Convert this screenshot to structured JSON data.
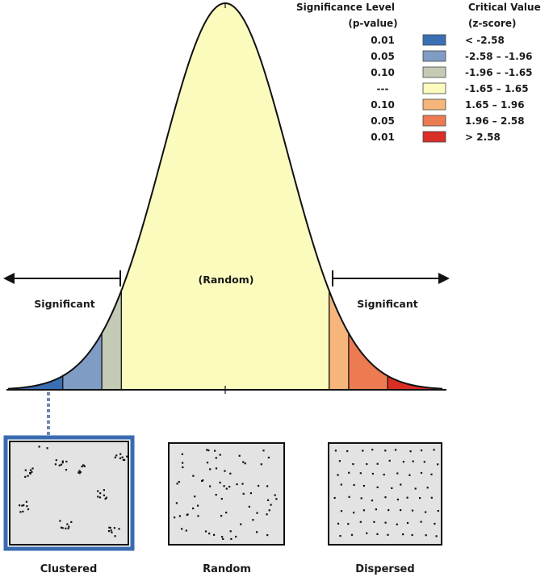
{
  "legend": {
    "p_header_line1": "Significance Level",
    "p_header_line2": "(p-value)",
    "z_header_line1": "Critical Value",
    "z_header_line2": "(z-score)",
    "rows": [
      {
        "p": "0.01",
        "z": "< -2.58",
        "color": "#3b6fb4"
      },
      {
        "p": "0.05",
        "z": "-2.58 – -1.96",
        "color": "#7f9cc4"
      },
      {
        "p": "0.10",
        "z": "-1.96 – -1.65",
        "color": "#c3cbb5"
      },
      {
        "p": "---",
        "z": "-1.65 – 1.65",
        "color": "#fbfbbe"
      },
      {
        "p": "0.10",
        "z": " 1.65 – 1.96",
        "color": "#f6b57a"
      },
      {
        "p": "0.05",
        "z": " 1.96 – 2.58",
        "color": "#ec7b52"
      },
      {
        "p": "0.01",
        "z": "> 2.58",
        "color": "#db2e26"
      }
    ]
  },
  "curve": {
    "center_label": "(Random)",
    "left_label": "Significant",
    "right_label": "Significant",
    "z_breaks": [
      -2.58,
      -1.96,
      -1.65,
      1.65,
      1.96,
      2.58
    ]
  },
  "patterns": [
    {
      "label": "Clustered"
    },
    {
      "label": "Random"
    },
    {
      "label": "Dispersed"
    }
  ],
  "colors": {
    "outline": "#111111",
    "selected_border": "#3a6bb0",
    "pattern_fill": "#e3e3e3",
    "dotted_connector": "#6f86ad"
  }
}
